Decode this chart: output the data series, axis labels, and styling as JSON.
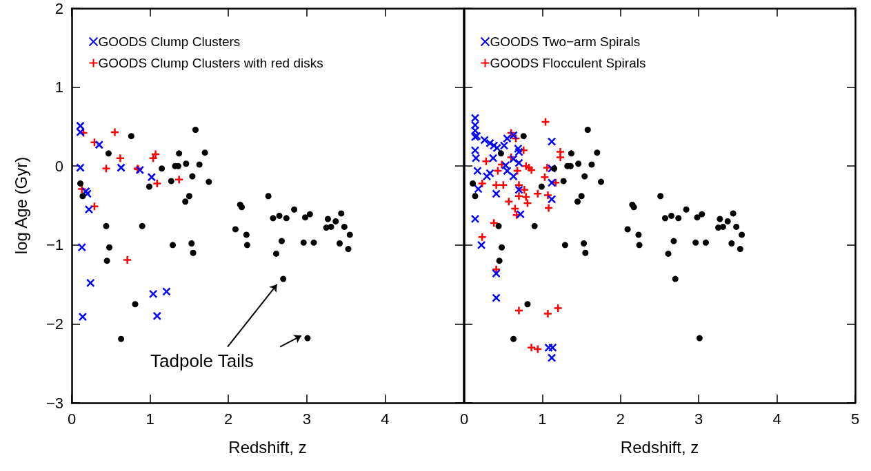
{
  "chart_data": [
    {
      "type": "scatter",
      "xlabel": "Redshift, z",
      "ylabel": "log Age (Gyr)",
      "xlim": [
        0,
        5
      ],
      "ylim": [
        -3,
        2
      ],
      "xticks": [
        0,
        1,
        2,
        3,
        4
      ],
      "yticks": [
        {
          "value": -3,
          "label": "−3"
        },
        {
          "value": -2,
          "label": "−2"
        },
        {
          "value": -1,
          "label": "−1"
        },
        0,
        1,
        2
      ],
      "grid": false,
      "legend": "top left",
      "annotations": [
        "Tadpole Tails"
      ],
      "series": [
        {
          "color": "#000000",
          "marker": "circle",
          "x": [
            0.76,
            1.58,
            0.47,
            1.37,
            1.7,
            1.32,
            1.36,
            1.46,
            1.15,
            1.63,
            1.54,
            1.75,
            1.27,
            0.99,
            0.11,
            0.14,
            1.5,
            1.45,
            0.44,
            0.9,
            0.48,
            0.45,
            1.29,
            1.53,
            1.55,
            0.81,
            0.63,
            2.51,
            2.15,
            2.17,
            2.09,
            2.23,
            2.24,
            2.57,
            2.65,
            2.74,
            2.84,
            2.98,
            3.04,
            2.68,
            2.61,
            2.96,
            3.09,
            3.27,
            3.44,
            3.37,
            3.25,
            3.31,
            3.48,
            3.55,
            3.42,
            3.53,
            2.7,
            3.01
          ],
          "values": [
            0.38,
            0.46,
            0.16,
            0.16,
            0.17,
            0.0,
            0.0,
            0.03,
            -0.03,
            0.02,
            -0.13,
            -0.2,
            -0.19,
            -0.26,
            -0.22,
            -0.38,
            -0.38,
            -0.45,
            -0.76,
            -0.76,
            -1.03,
            -1.2,
            -1.0,
            -0.98,
            -1.1,
            -1.75,
            -2.19,
            -0.38,
            -0.49,
            -0.52,
            -0.8,
            -0.87,
            -1.0,
            -0.66,
            -0.63,
            -0.66,
            -0.55,
            -0.65,
            -0.61,
            -0.95,
            -1.11,
            -0.97,
            -0.97,
            -0.67,
            -0.6,
            -0.7,
            -0.78,
            -0.77,
            -0.77,
            -0.87,
            -0.98,
            -1.05,
            -1.43,
            -2.18
          ]
        },
        {
          "name": "GOODS Clump Clusters",
          "color": "#0000ff",
          "marker": "cross",
          "x": [
            0.11,
            0.11,
            0.35,
            0.11,
            0.63,
            0.87,
            1.02,
            0.18,
            0.2,
            0.22,
            0.13,
            0.24,
            1.04,
            1.21,
            1.09,
            0.14
          ],
          "values": [
            0.51,
            0.43,
            0.27,
            -0.02,
            -0.02,
            -0.05,
            -0.14,
            -0.32,
            -0.35,
            -0.55,
            -1.03,
            -1.48,
            -1.62,
            -1.59,
            -1.9,
            -1.91
          ]
        },
        {
          "name": "GOODS Clump Clusters with red disks",
          "color": "#ff0000",
          "marker": "plus",
          "x": [
            0.15,
            0.55,
            0.29,
            0.62,
            1.07,
            1.04,
            0.44,
            0.84,
            0.85,
            1.09,
            1.37,
            0.13,
            0.29,
            0.71
          ],
          "values": [
            0.42,
            0.43,
            0.3,
            0.1,
            0.15,
            0.1,
            -0.03,
            -0.03,
            -0.04,
            -0.22,
            -0.17,
            -0.29,
            -0.51,
            -1.19
          ]
        }
      ]
    },
    {
      "type": "scatter",
      "xlabel": "Redshift, z",
      "xlim": [
        0,
        5
      ],
      "ylim": [
        -3,
        2
      ],
      "xticks": [
        0,
        1,
        2,
        3,
        4,
        5
      ],
      "yticks": [
        -3,
        -2,
        -1,
        0,
        1,
        2
      ],
      "tick_labels": "x",
      "grid": false,
      "legend": "top left",
      "series": [
        {
          "color": "#000000",
          "marker": "circle",
          "x": [
            0.76,
            1.58,
            0.47,
            1.37,
            1.7,
            1.32,
            1.36,
            1.46,
            1.15,
            1.63,
            1.54,
            1.75,
            1.27,
            0.99,
            0.11,
            0.14,
            1.5,
            1.45,
            0.44,
            0.9,
            0.48,
            0.45,
            1.29,
            1.53,
            1.55,
            0.81,
            0.63,
            2.51,
            2.15,
            2.17,
            2.09,
            2.23,
            2.24,
            2.57,
            2.65,
            2.74,
            2.84,
            2.98,
            3.04,
            2.68,
            2.61,
            2.96,
            3.09,
            3.27,
            3.44,
            3.37,
            3.25,
            3.31,
            3.48,
            3.55,
            3.42,
            3.53,
            2.7,
            3.01
          ],
          "values": [
            0.38,
            0.46,
            0.16,
            0.16,
            0.17,
            0.0,
            0.0,
            0.03,
            -0.03,
            0.02,
            -0.13,
            -0.2,
            -0.19,
            -0.26,
            -0.22,
            -0.38,
            -0.38,
            -0.45,
            -0.76,
            -0.76,
            -1.03,
            -1.2,
            -1.0,
            -0.98,
            -1.1,
            -1.75,
            -2.19,
            -0.38,
            -0.49,
            -0.52,
            -0.8,
            -0.87,
            -1.0,
            -0.66,
            -0.63,
            -0.66,
            -0.55,
            -0.65,
            -0.61,
            -0.95,
            -1.11,
            -0.97,
            -0.97,
            -0.67,
            -0.6,
            -0.7,
            -0.78,
            -0.77,
            -0.77,
            -0.87,
            -0.98,
            -1.05,
            -1.43,
            -2.18
          ]
        },
        {
          "name": "GOODS Two−arm Spirals",
          "color": "#0000ff",
          "marker": "cross",
          "x": [
            0.14,
            0.14,
            0.14,
            0.14,
            0.16,
            0.26,
            0.33,
            0.38,
            0.42,
            0.55,
            0.63,
            0.51,
            0.69,
            0.7,
            0.14,
            0.15,
            0.37,
            0.63,
            0.7,
            0.17,
            0.33,
            0.29,
            0.53,
            0.55,
            0.63,
            1.12,
            1.12,
            1.12,
            1.12,
            0.18,
            0.41,
            0.7,
            0.72,
            0.14,
            0.22,
            0.41,
            0.41,
            1.08,
            1.13,
            1.12
          ],
          "values": [
            0.61,
            0.52,
            0.45,
            0.37,
            0.38,
            0.33,
            0.29,
            0.26,
            0.23,
            0.35,
            0.39,
            0.26,
            0.22,
            0.18,
            0.2,
            0.1,
            0.1,
            0.09,
            0.04,
            -0.06,
            -0.09,
            -0.13,
            0.01,
            -0.06,
            -0.13,
            0.31,
            -0.03,
            -0.21,
            -0.42,
            -0.29,
            -0.35,
            -0.3,
            -0.61,
            -0.67,
            -1.0,
            -1.36,
            -1.67,
            -2.3,
            -2.3,
            -2.43
          ]
        },
        {
          "name": "GOODS Flocculent Spirals",
          "color": "#ff0000",
          "marker": "plus",
          "x": [
            1.04,
            0.6,
            0.66,
            0.76,
            1.23,
            1.23,
            0.28,
            0.6,
            0.48,
            0.79,
            0.83,
            0.86,
            1.06,
            0.68,
            0.43,
            1.03,
            1.17,
            0.23,
            0.41,
            0.5,
            0.7,
            0.77,
            0.94,
            1.07,
            0.7,
            0.79,
            0.81,
            0.57,
            1.08,
            0.65,
            0.67,
            0.38,
            0.23,
            0.41,
            0.7,
            1.07,
            1.2,
            0.86,
            0.94
          ],
          "values": [
            0.56,
            0.42,
            0.35,
            0.2,
            0.18,
            0.11,
            0.06,
            0.11,
            0.02,
            0.0,
            -0.02,
            -0.05,
            -0.02,
            -0.06,
            -0.06,
            -0.14,
            -0.21,
            -0.22,
            -0.24,
            -0.24,
            -0.24,
            -0.3,
            -0.35,
            -0.37,
            -0.38,
            -0.39,
            -0.47,
            -0.45,
            -0.53,
            -0.54,
            -0.62,
            -0.72,
            -0.9,
            -1.31,
            -1.83,
            -1.87,
            -1.8,
            -2.3,
            -2.32
          ]
        }
      ]
    }
  ]
}
